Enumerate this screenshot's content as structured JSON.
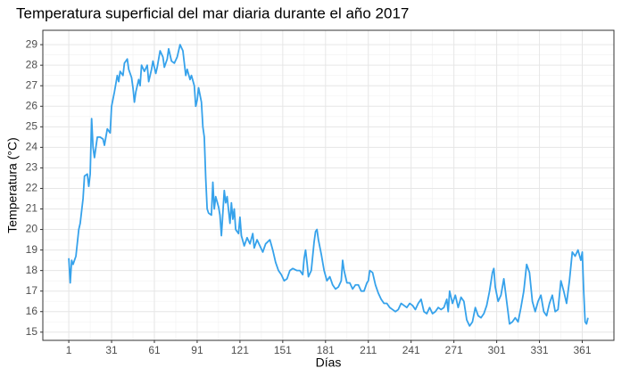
{
  "chart_data": {
    "type": "line",
    "title": "Temperatura superficial del mar diaria durante el año 2017",
    "x_label": "Días",
    "y_label": "Temperatura (°C)",
    "color": "#36a2eb",
    "grid": true,
    "xlim": [
      -17.2,
      383.2
    ],
    "xticks": [
      1,
      31,
      61,
      91,
      121,
      151,
      181,
      211,
      241,
      271,
      301,
      331,
      361
    ],
    "ylim": [
      14.6,
      29.7
    ],
    "yticks": [
      15,
      16,
      17,
      18,
      19,
      20,
      21,
      22,
      23,
      24,
      25,
      26,
      27,
      28,
      29
    ],
    "x": [
      1,
      2,
      3,
      4,
      6,
      8,
      9,
      11,
      12,
      14,
      15,
      16,
      17,
      18,
      19,
      21,
      23,
      25,
      26,
      28,
      30,
      31,
      33,
      35,
      36,
      37,
      39,
      40,
      42,
      43,
      45,
      46,
      47,
      48,
      50,
      51,
      52,
      54,
      56,
      57,
      59,
      60,
      62,
      63,
      65,
      67,
      68,
      70,
      71,
      73,
      75,
      77,
      79,
      81,
      83,
      84,
      86,
      87,
      89,
      90,
      91,
      92,
      94,
      95,
      96,
      97,
      98,
      99,
      101,
      102,
      103,
      104,
      106,
      107,
      108,
      109,
      110,
      111,
      112,
      114,
      115,
      116,
      117,
      118,
      120,
      121,
      122,
      124,
      126,
      128,
      130,
      131,
      133,
      135,
      137,
      139,
      142,
      144,
      146,
      148,
      150,
      152,
      154,
      156,
      158,
      161,
      163,
      165,
      166,
      167,
      168,
      169,
      171,
      173,
      174,
      175,
      176,
      178,
      180,
      182,
      184,
      186,
      188,
      190,
      192,
      193,
      194,
      196,
      198,
      200,
      202,
      204,
      206,
      208,
      210,
      211,
      212,
      214,
      216,
      218,
      220,
      222,
      224,
      226,
      228,
      230,
      232,
      234,
      236,
      238,
      240,
      242,
      244,
      246,
      248,
      250,
      252,
      254,
      256,
      258,
      260,
      262,
      264,
      266,
      267,
      268,
      270,
      272,
      274,
      276,
      278,
      280,
      282,
      284,
      286,
      288,
      290,
      292,
      294,
      296,
      298,
      299,
      300,
      302,
      304,
      306,
      308,
      310,
      312,
      314,
      316,
      318,
      320,
      322,
      324,
      326,
      328,
      330,
      332,
      334,
      336,
      338,
      340,
      342,
      344,
      346,
      348,
      350,
      352,
      354,
      356,
      358,
      360,
      361,
      362,
      363,
      364,
      365
    ],
    "values": [
      18.6,
      17.4,
      18.5,
      18.3,
      18.7,
      20.0,
      20.3,
      21.5,
      22.6,
      22.7,
      22.1,
      22.7,
      25.4,
      24.0,
      23.5,
      24.5,
      24.5,
      24.4,
      24.1,
      24.9,
      24.7,
      26.0,
      26.7,
      27.5,
      27.2,
      27.7,
      27.5,
      28.1,
      28.3,
      27.8,
      27.4,
      26.9,
      26.2,
      26.7,
      27.3,
      27.0,
      28.0,
      27.7,
      28.0,
      27.2,
      27.8,
      28.2,
      27.6,
      27.9,
      28.7,
      28.4,
      27.9,
      28.3,
      28.8,
      28.2,
      28.1,
      28.4,
      29.0,
      28.7,
      27.5,
      27.8,
      27.3,
      27.5,
      27.0,
      26.0,
      26.3,
      26.9,
      26.2,
      25.0,
      24.5,
      22.5,
      21.0,
      20.8,
      20.7,
      22.3,
      21.0,
      21.6,
      21.1,
      20.7,
      19.7,
      20.8,
      21.9,
      21.3,
      21.6,
      20.3,
      21.3,
      20.5,
      21.0,
      20.0,
      19.8,
      20.6,
      19.7,
      19.2,
      19.6,
      19.3,
      19.8,
      19.1,
      19.5,
      19.2,
      18.9,
      19.3,
      19.5,
      19.0,
      18.4,
      18.0,
      17.8,
      17.5,
      17.6,
      18.0,
      18.1,
      18.0,
      18.0,
      17.8,
      18.6,
      19.0,
      18.4,
      17.7,
      18.0,
      19.4,
      19.9,
      20.0,
      19.5,
      18.8,
      18.0,
      17.5,
      17.7,
      17.3,
      17.1,
      17.2,
      17.5,
      18.5,
      18.0,
      17.4,
      17.4,
      17.1,
      17.3,
      17.3,
      17.0,
      17.0,
      17.4,
      17.5,
      18.0,
      17.9,
      17.3,
      16.9,
      16.6,
      16.4,
      16.4,
      16.2,
      16.1,
      16.0,
      16.1,
      16.4,
      16.3,
      16.2,
      16.4,
      16.3,
      16.1,
      16.4,
      16.6,
      16.0,
      15.9,
      16.2,
      15.9,
      16.0,
      16.2,
      16.1,
      16.2,
      16.6,
      16.0,
      17.0,
      16.4,
      16.8,
      16.2,
      16.7,
      16.5,
      15.6,
      15.3,
      15.5,
      16.2,
      15.8,
      15.7,
      15.9,
      16.3,
      17.0,
      17.9,
      18.1,
      17.2,
      16.5,
      16.8,
      17.6,
      16.5,
      15.4,
      15.5,
      15.7,
      15.5,
      16.2,
      17.0,
      18.3,
      17.9,
      16.5,
      16.0,
      16.5,
      16.8,
      16.0,
      15.8,
      16.4,
      16.8,
      16.0,
      16.1,
      17.5,
      17.0,
      16.4,
      17.5,
      18.9,
      18.7,
      19.0,
      18.5,
      18.9,
      17.0,
      15.5,
      15.4,
      15.7
    ]
  }
}
